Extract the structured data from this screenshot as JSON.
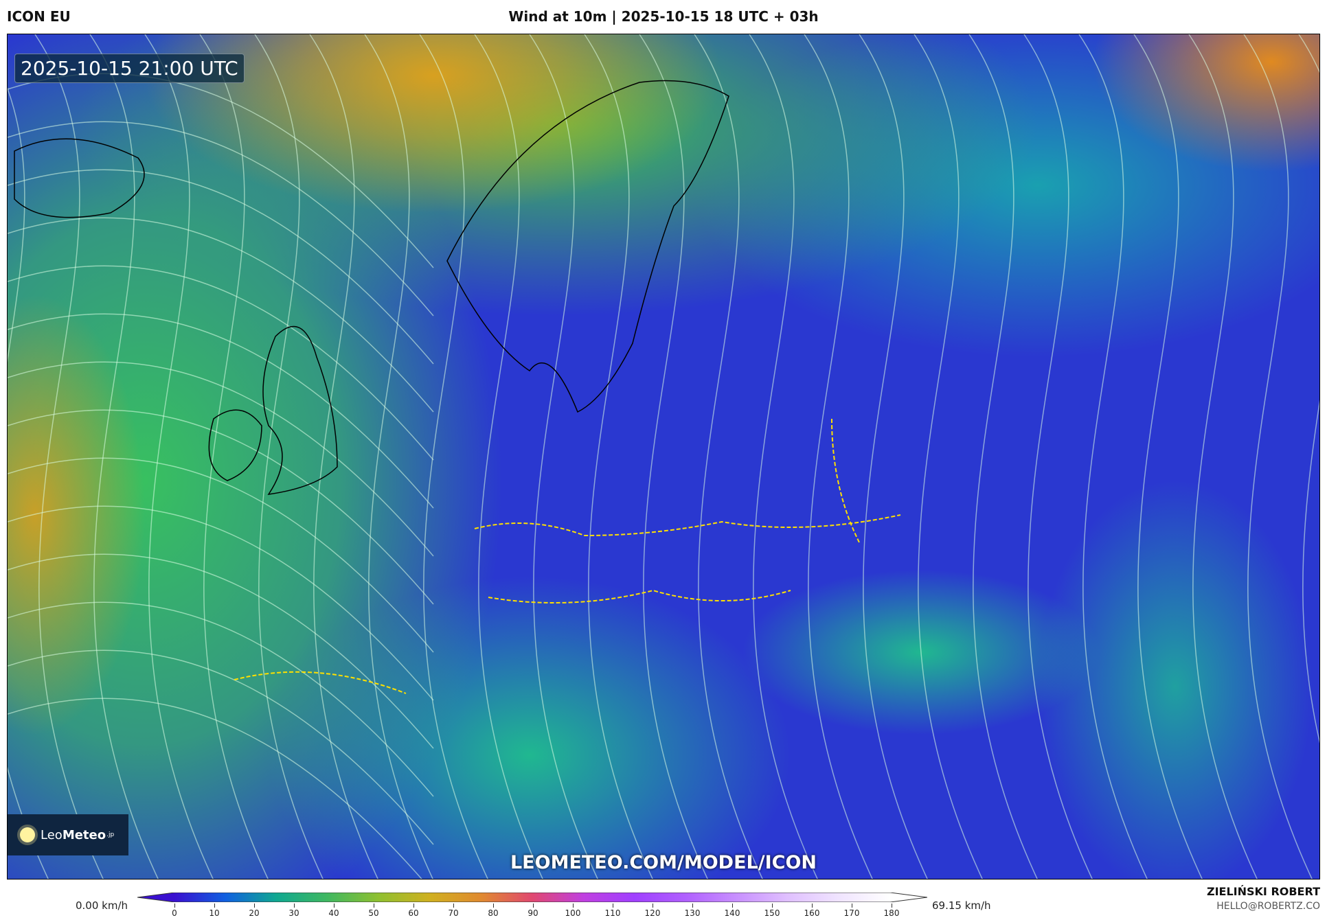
{
  "header": {
    "model": "ICON EU",
    "title": "Wind at 10m | 2025-10-15 18 UTC + 03h"
  },
  "map": {
    "valid_time": "2025-10-15 21:00 UTC",
    "watermark": "LEOMETEO.COM/MODEL/ICON",
    "logo_text": "LeoMeteo.jp",
    "logo_parts": {
      "leo": "Leo",
      "meteo": "Meteo",
      "tld": ".jp"
    }
  },
  "colorbar": {
    "min_label": "0.00 km/h",
    "max_label": "69.15 km/h",
    "unit": "km/h",
    "ticks": [
      "0",
      "10",
      "20",
      "30",
      "40",
      "50",
      "60",
      "70",
      "80",
      "90",
      "100",
      "110",
      "120",
      "130",
      "140",
      "150",
      "160",
      "170",
      "180"
    ],
    "colors": [
      "#3a10d0",
      "#1060e0",
      "#10a890",
      "#40b860",
      "#90c030",
      "#d0b020",
      "#e08a30",
      "#e04870",
      "#c040e0",
      "#a040ff",
      "#b060ff",
      "#c890ff",
      "#e0c0ff",
      "#f0e4ff",
      "#ffffff"
    ]
  },
  "credits": {
    "author": "ZIELIŃSKI ROBERT",
    "email": "HELLO@ROBERTZ.CO"
  }
}
